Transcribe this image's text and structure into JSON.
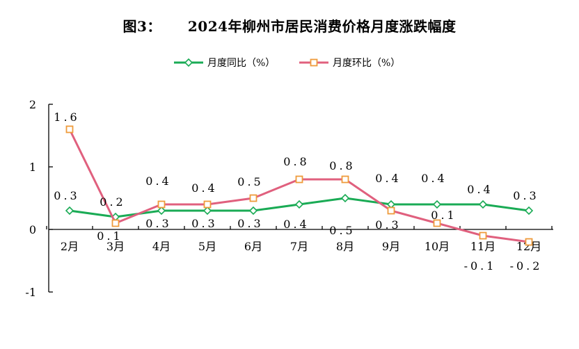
{
  "chart_data": {
    "type": "line",
    "title_prefix": "图3：",
    "title": "2024年柳州市居民消费价格月度涨跌幅度",
    "categories": [
      "2月",
      "3月",
      "4月",
      "5月",
      "6月",
      "7月",
      "8月",
      "9月",
      "10月",
      "11月",
      "12月"
    ],
    "ylim": [
      -1,
      2
    ],
    "yticks": [
      "-1",
      "0",
      "1",
      "2"
    ],
    "legend_position": "top-center",
    "grid": false,
    "series": [
      {
        "name": "月度同比（%）",
        "color": "#1aab55",
        "marker": "diamond",
        "values": [
          0.3,
          0.2,
          0.3,
          0.3,
          0.3,
          0.4,
          0.5,
          0.4,
          0.4,
          0.4,
          0.3
        ],
        "labels": [
          "0.3",
          "0.2",
          "0.3",
          "0.3",
          "0.3",
          "0.4",
          "0.5",
          "0.4",
          "0.4",
          "0.4",
          "0.3"
        ]
      },
      {
        "name": "月度环比（%）",
        "color": "#e0607e",
        "marker_color": "#ef9b3b",
        "marker": "square",
        "values": [
          1.6,
          0.1,
          0.4,
          0.4,
          0.5,
          0.8,
          0.8,
          0.3,
          0.1,
          -0.1,
          -0.2
        ],
        "labels": [
          "1.6",
          "0.1",
          "0.4",
          "0.4",
          "0.5",
          "0.8",
          "0.8",
          "0.3",
          "0.1",
          "-0.1",
          "-0.2"
        ]
      }
    ]
  }
}
